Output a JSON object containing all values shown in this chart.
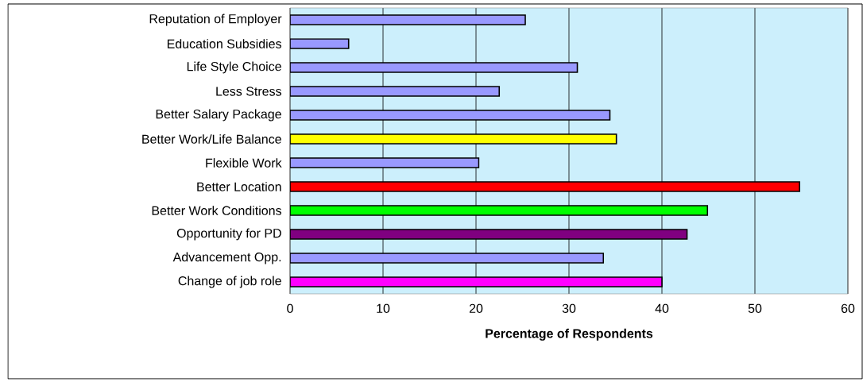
{
  "chart_data": {
    "type": "bar",
    "orientation": "horizontal",
    "xlabel": "Percentage of Respondents",
    "categories": [
      "Reputation of Employer",
      "Education Subsidies",
      "Life Style Choice",
      "Less Stress",
      "Better Salary Package",
      "Better Work/Life Balance",
      "Flexible Work",
      "Better Location",
      "Better Work Conditions",
      "Opportunity for PD",
      "Advancement Opp.",
      "Change of job role"
    ],
    "values": [
      25.3,
      6.3,
      30.9,
      22.5,
      34.4,
      35.1,
      20.3,
      54.8,
      44.9,
      42.7,
      33.7,
      40
    ],
    "colors": [
      "#9999ff",
      "#9999ff",
      "#9999ff",
      "#9999ff",
      "#9999ff",
      "#ffff00",
      "#9999ff",
      "#ff0000",
      "#00ff00",
      "#800080",
      "#9999ff",
      "#ff00ff"
    ],
    "xlim": [
      0,
      60
    ],
    "xticks": [
      0,
      10,
      20,
      30,
      40,
      50,
      60
    ],
    "grid": "x"
  }
}
